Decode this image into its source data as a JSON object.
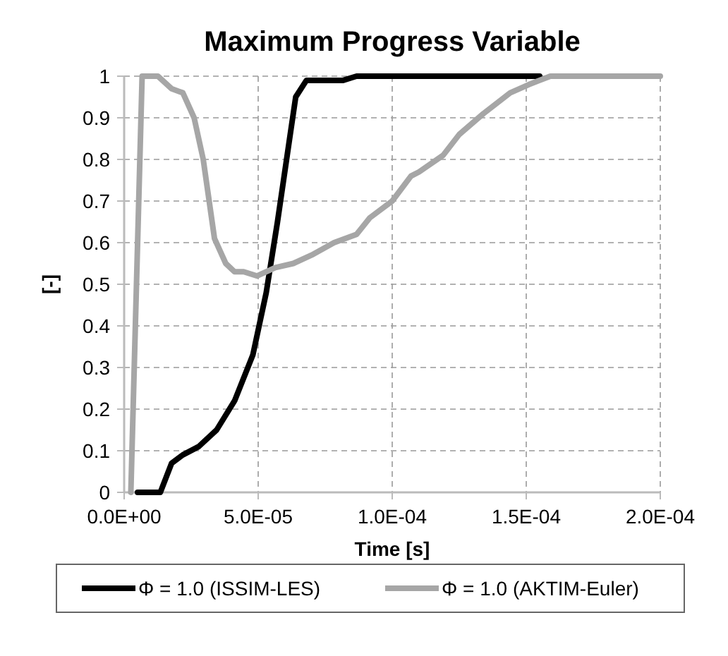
{
  "chart_data": {
    "type": "line",
    "title": "Maximum Progress Variable",
    "xlabel": "Time [s]",
    "ylabel": "[-]",
    "xlim": [
      0,
      0.0002
    ],
    "xticks": [
      {
        "value": 0,
        "label": "0.0E+00"
      },
      {
        "value": 5e-05,
        "label": "5.0E-05"
      },
      {
        "value": 0.0001,
        "label": "1.0E-04"
      },
      {
        "value": 0.00015,
        "label": "1.5E-04"
      },
      {
        "value": 0.0002,
        "label": "2.0E-04"
      }
    ],
    "ylim": [
      0,
      1
    ],
    "yticks": [
      0,
      0.1,
      0.2,
      0.3,
      0.4,
      0.5,
      0.6,
      0.7,
      0.8,
      0.9,
      1
    ],
    "grid": true,
    "legend": "bottom",
    "line_style": "solid",
    "marker": "none",
    "series": [
      {
        "name": "Φ = 1.0 (ISSIM-LES)",
        "color": "#000000",
        "x": [
          5e-06,
          1.35e-05,
          1.77e-05,
          2.19e-05,
          2.78e-05,
          3.45e-05,
          4.12e-05,
          4.8e-05,
          5.3e-05,
          5.72e-05,
          6.15e-05,
          6.4e-05,
          6.8e-05,
          8.17e-05,
          8.67e-05,
          0.000155
        ],
        "values": [
          0,
          0,
          0.07,
          0.09,
          0.11,
          0.15,
          0.22,
          0.33,
          0.48,
          0.65,
          0.84,
          0.95,
          0.99,
          0.99,
          1,
          1
        ]
      },
      {
        "name": "Φ = 1.0 (AKTIM-Euler)",
        "color": "#a6a6a6",
        "x": [
          2.5e-06,
          6.7e-06,
          1.26e-05,
          1.77e-05,
          2.19e-05,
          2.61e-05,
          2.95e-05,
          3.37e-05,
          3.79e-05,
          4.12e-05,
          4.46e-05,
          4.96e-05,
          5.64e-05,
          6.31e-05,
          6.99e-05,
          7.83e-05,
          8.67e-05,
          9.17e-05,
          0.0001,
          0.000107,
          0.00011,
          0.000119,
          0.000125,
          0.000134,
          0.000144,
          0.000151,
          0.000159,
          0.0002
        ],
        "values": [
          0,
          1,
          1,
          0.97,
          0.96,
          0.9,
          0.8,
          0.61,
          0.55,
          0.53,
          0.53,
          0.52,
          0.54,
          0.55,
          0.57,
          0.6,
          0.62,
          0.66,
          0.7,
          0.76,
          0.77,
          0.81,
          0.86,
          0.91,
          0.96,
          0.98,
          1,
          1
        ]
      }
    ]
  }
}
